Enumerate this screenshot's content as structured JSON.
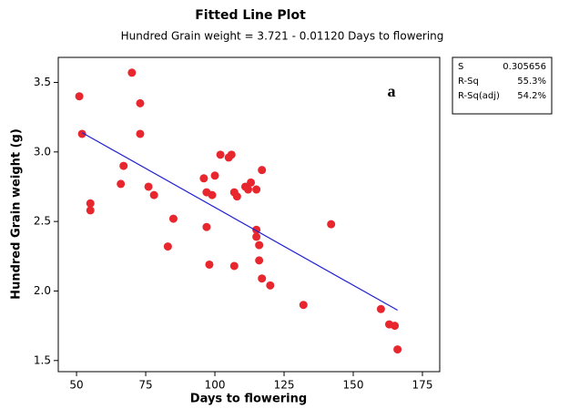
{
  "chart_data": {
    "type": "scatter",
    "title": "Fitted Line Plot",
    "subtitle": "Hundred Grain weight  =  3.721 - 0.01120 Days to flowering",
    "xlabel": "Days to flowering",
    "ylabel": "Hundred Grain weight  (g)",
    "annotation": "a",
    "xlim": [
      43.4,
      181.25
    ],
    "ylim": [
      1.42,
      3.68
    ],
    "xticks": [
      50,
      75,
      100,
      125,
      150,
      175
    ],
    "yticks": [
      1.5,
      {
        "value": 2,
        "label": "2.0"
      },
      2.5,
      {
        "value": 3,
        "label": "3.0"
      },
      3.5
    ],
    "grid": false,
    "series": [
      {
        "type": "scatter",
        "color": "#e8262e",
        "x": [
          51,
          52,
          55,
          55,
          66,
          67,
          70,
          73,
          73,
          76,
          78,
          83,
          85,
          96,
          97,
          97,
          98,
          99,
          100,
          102,
          105,
          106,
          107,
          107,
          108,
          111,
          112,
          113,
          115,
          115,
          115,
          116,
          116,
          117,
          117,
          120,
          132,
          142,
          160,
          163,
          165,
          166
        ],
        "values": [
          3.4,
          3.13,
          2.63,
          2.58,
          2.77,
          2.9,
          3.57,
          3.35,
          3.13,
          2.75,
          2.69,
          2.32,
          2.52,
          2.81,
          2.71,
          2.46,
          2.19,
          2.69,
          2.83,
          2.98,
          2.96,
          2.98,
          2.71,
          2.18,
          2.68,
          2.75,
          2.73,
          2.78,
          2.73,
          2.44,
          2.39,
          2.33,
          2.22,
          2.87,
          2.09,
          2.04,
          1.9,
          2.48,
          1.87,
          1.76,
          1.75,
          1.58
        ]
      },
      {
        "type": "line",
        "color": "#1f1fd6",
        "x": [
          52,
          166
        ],
        "values": [
          3.139,
          1.862
        ]
      }
    ],
    "stats": [
      [
        "S",
        "0.305656"
      ],
      [
        "R-Sq",
        "55.3%"
      ],
      [
        "R-Sq(adj)",
        "54.2%"
      ]
    ]
  }
}
